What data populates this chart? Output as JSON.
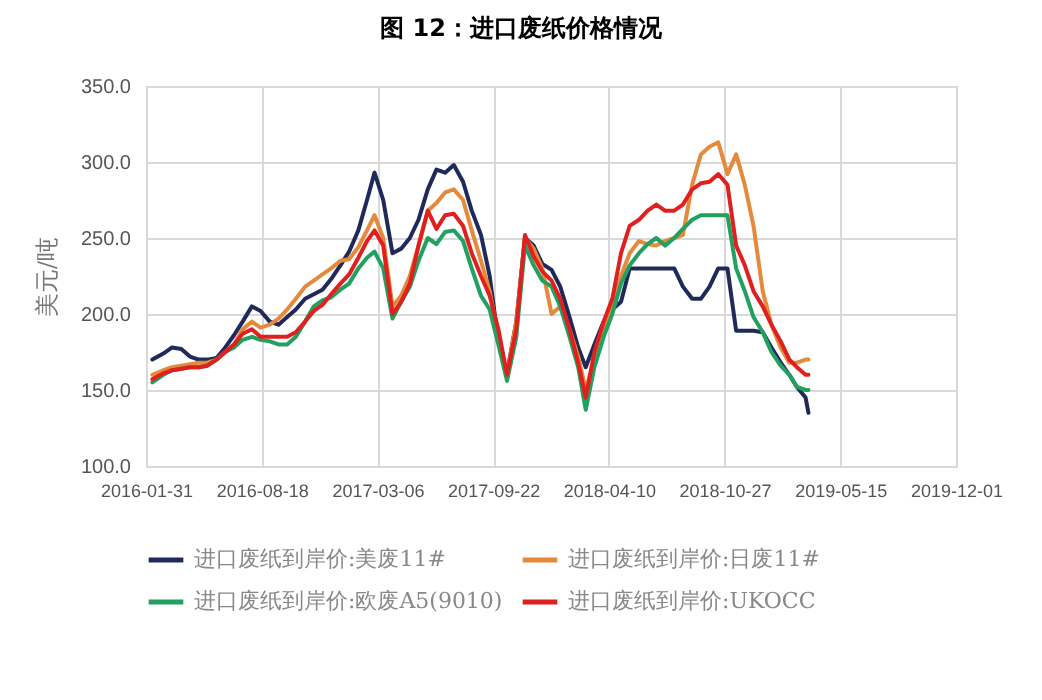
{
  "chart_data": {
    "type": "line",
    "title": "图 12：进口废纸价格情况",
    "ylabel": "美元/吨",
    "x": [
      "2016-02-11",
      "2016-03-01",
      "2016-03-16",
      "2016-04-01",
      "2016-04-16",
      "2016-05-01",
      "2016-05-16",
      "2016-06-01",
      "2016-06-16",
      "2016-07-01",
      "2016-07-16",
      "2016-08-01",
      "2016-08-16",
      "2016-09-01",
      "2016-09-16",
      "2016-10-01",
      "2016-10-16",
      "2016-11-01",
      "2016-11-16",
      "2016-12-01",
      "2016-12-16",
      "2017-01-01",
      "2017-01-16",
      "2017-02-01",
      "2017-02-16",
      "2017-03-01",
      "2017-03-16",
      "2017-04-01",
      "2017-04-16",
      "2017-05-01",
      "2017-05-16",
      "2017-06-01",
      "2017-06-16",
      "2017-07-01",
      "2017-07-16",
      "2017-08-01",
      "2017-08-16",
      "2017-09-01",
      "2017-09-16",
      "2017-10-01",
      "2017-10-16",
      "2017-11-01",
      "2017-11-16",
      "2017-12-01",
      "2017-12-16",
      "2018-01-01",
      "2018-01-16",
      "2018-02-01",
      "2018-02-16",
      "2018-03-01",
      "2018-03-16",
      "2018-04-01",
      "2018-04-16",
      "2018-05-01",
      "2018-05-16",
      "2018-06-01",
      "2018-06-16",
      "2018-07-01",
      "2018-07-16",
      "2018-08-01",
      "2018-08-16",
      "2018-09-01",
      "2018-09-16",
      "2018-10-01",
      "2018-10-16",
      "2018-11-01",
      "2018-11-16",
      "2018-12-01",
      "2018-12-16",
      "2019-01-01",
      "2019-01-16",
      "2019-02-01",
      "2019-02-16",
      "2019-03-01",
      "2019-03-16",
      "2019-03-21"
    ],
    "series": [
      {
        "name": "进口废纸到岸价:美废11#",
        "color": "#1f2a5a",
        "values": [
          170,
          174,
          178,
          177,
          172,
          170,
          170,
          171,
          178,
          186,
          195,
          205,
          202,
          195,
          193,
          198,
          203,
          210,
          213,
          216,
          223,
          232,
          241,
          255,
          275,
          293,
          275,
          240,
          243,
          250,
          262,
          282,
          295,
          293,
          298,
          287,
          268,
          252,
          225,
          182,
          161,
          195,
          250,
          245,
          233,
          229,
          218,
          198,
          178,
          165,
          180,
          195,
          203,
          208,
          230,
          230,
          230,
          230,
          230,
          230,
          218,
          210,
          210,
          218,
          230,
          230,
          189,
          189,
          189,
          188,
          178,
          168,
          160,
          152,
          145,
          135
        ]
      },
      {
        "name": "进口废纸到岸价:日废11#",
        "color": "#e58a3c",
        "values": [
          160,
          163,
          165,
          166,
          167,
          168,
          168,
          170,
          175,
          180,
          190,
          195,
          191,
          193,
          197,
          203,
          210,
          218,
          222,
          226,
          230,
          235,
          236,
          244,
          255,
          265,
          250,
          205,
          212,
          225,
          245,
          268,
          273,
          280,
          282,
          275,
          255,
          235,
          215,
          185,
          160,
          195,
          250,
          243,
          230,
          200,
          205,
          190,
          172,
          150,
          170,
          190,
          205,
          225,
          240,
          248,
          246,
          245,
          248,
          250,
          252,
          285,
          305,
          310,
          313,
          292,
          305,
          285,
          258,
          215,
          193,
          178,
          168,
          168,
          170,
          170
        ]
      },
      {
        "name": "进口废纸到岸价:欧废A5(9010)",
        "color": "#21a060",
        "values": [
          155,
          160,
          163,
          164,
          165,
          165,
          166,
          170,
          175,
          178,
          183,
          185,
          183,
          182,
          180,
          180,
          185,
          195,
          205,
          209,
          211,
          216,
          220,
          230,
          237,
          241,
          230,
          197,
          208,
          218,
          235,
          250,
          246,
          254,
          255,
          248,
          230,
          212,
          203,
          180,
          156,
          185,
          245,
          232,
          222,
          218,
          205,
          185,
          165,
          137,
          165,
          185,
          200,
          220,
          232,
          240,
          246,
          250,
          245,
          250,
          256,
          262,
          265,
          265,
          265,
          265,
          230,
          215,
          198,
          188,
          175,
          166,
          160,
          152,
          150,
          150
        ]
      },
      {
        "name": "进口废纸到岸价:UKOCC",
        "color": "#e0201e",
        "values": [
          157,
          161,
          163,
          164,
          165,
          165,
          166,
          170,
          175,
          180,
          187,
          190,
          185,
          185,
          185,
          185,
          188,
          195,
          202,
          206,
          213,
          220,
          226,
          237,
          248,
          255,
          245,
          200,
          208,
          220,
          245,
          268,
          256,
          265,
          266,
          258,
          240,
          225,
          212,
          190,
          160,
          190,
          252,
          238,
          228,
          222,
          210,
          190,
          168,
          145,
          175,
          195,
          210,
          240,
          258,
          262,
          268,
          272,
          268,
          268,
          272,
          282,
          286,
          287,
          292,
          285,
          245,
          232,
          215,
          205,
          193,
          182,
          170,
          165,
          160,
          160
        ]
      }
    ],
    "xlim": [
      "2016-01-31",
      "2019-12-01"
    ],
    "xticks": [
      "2016-01-31",
      "2016-08-18",
      "2017-03-06",
      "2017-09-22",
      "2018-04-10",
      "2018-10-27",
      "2019-05-15",
      "2019-12-01"
    ],
    "ylim": [
      100,
      350
    ],
    "yticks": [
      {
        "value": 100,
        "label": "100.0"
      },
      {
        "value": 150,
        "label": "150.0"
      },
      {
        "value": 200,
        "label": "200.0"
      },
      {
        "value": 250,
        "label": "250.0"
      },
      {
        "value": 300,
        "label": "300.0"
      },
      {
        "value": 350,
        "label": "350.0"
      }
    ],
    "grid": true,
    "legend": "bottom",
    "line_style": "solid"
  }
}
